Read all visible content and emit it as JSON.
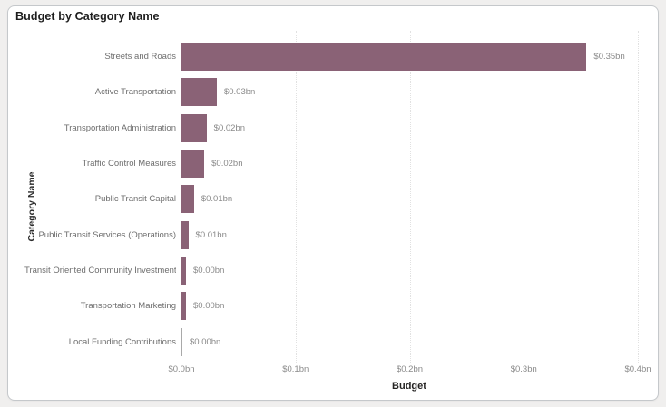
{
  "card": {
    "title": "Budget by Category Name"
  },
  "chart_data": {
    "type": "bar",
    "orientation": "horizontal",
    "title": "Budget by Category Name",
    "xlabel": "Budget",
    "ylabel": "Category Name",
    "categories": [
      "Streets and Roads",
      "Active Transportation",
      "Transportation Administration",
      "Traffic Control Measures",
      "Public Transit Capital",
      "Public Transit Services (Operations)",
      "Transit Oriented Community Investment",
      "Transportation Marketing",
      "Local Funding Contributions"
    ],
    "values_bn": [
      0.35,
      0.03,
      0.02,
      0.02,
      0.01,
      0.01,
      0.0,
      0.0,
      0.0
    ],
    "values_est_bn": [
      0.355,
      0.031,
      0.022,
      0.02,
      0.011,
      0.006,
      0.004,
      0.004,
      0.0004
    ],
    "data_labels": [
      "$0.35bn",
      "$0.03bn",
      "$0.02bn",
      "$0.02bn",
      "$0.01bn",
      "$0.01bn",
      "$0.00bn",
      "$0.00bn",
      "$0.00bn"
    ],
    "x_tick_labels": [
      "$0.0bn",
      "$0.1bn",
      "$0.2bn",
      "$0.3bn",
      "$0.4bn"
    ],
    "x_tick_values": [
      0,
      0.1,
      0.2,
      0.3,
      0.4
    ],
    "xlim": [
      0,
      0.4
    ],
    "bar_color": "#8A6276",
    "zero_bar_color": "#a9a9a9",
    "grid": {
      "vertical": true,
      "style": "dotted",
      "color": "#e1e1e1"
    },
    "legend": "none"
  }
}
